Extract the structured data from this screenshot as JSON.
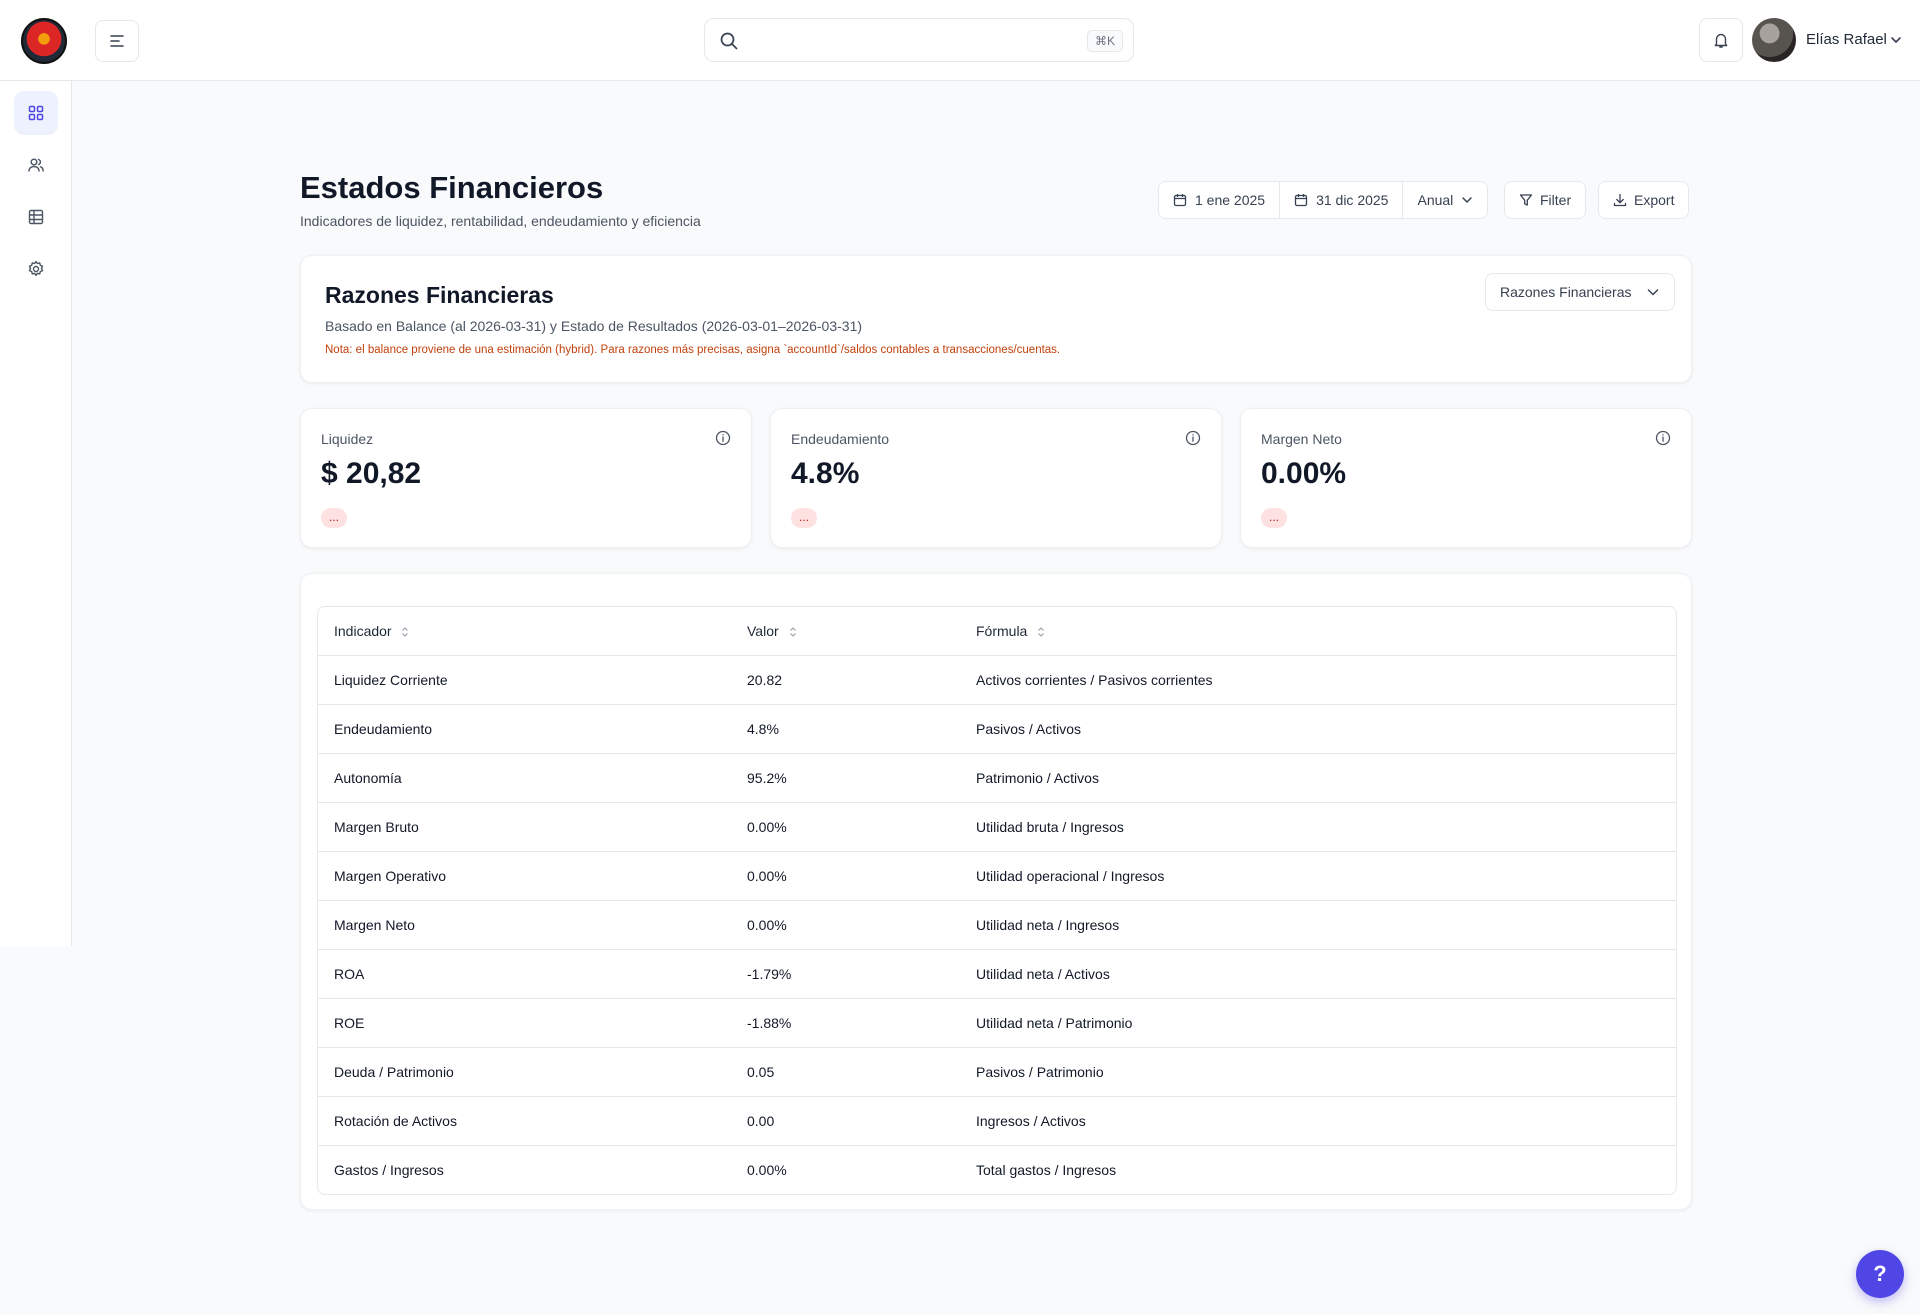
{
  "topbar": {
    "search_placeholder": "",
    "search_shortcut": "⌘K",
    "user_name": "Elías Rafael"
  },
  "sidebar": {
    "items": [
      {
        "icon": "grid-icon",
        "active": true
      },
      {
        "icon": "users-icon",
        "active": false
      },
      {
        "icon": "table-icon",
        "active": false
      },
      {
        "icon": "gear-icon",
        "active": false
      }
    ]
  },
  "header": {
    "title": "Estados Financieros",
    "subtitle": "Indicadores de liquidez, rentabilidad, endeudamiento y eficiencia",
    "date_from": "1 ene 2025",
    "date_to": "31 dic 2025",
    "period": "Anual",
    "filter_label": "Filter",
    "export_label": "Export"
  },
  "ratios": {
    "title": "Razones Financieras",
    "subtitle": "Basado en Balance (al 2026-03-31) y Estado de Resultados (2026-03-01–2026-03-31)",
    "note": "Nota: el balance proviene de una estimación (hybrid). Para razones más precisas, asigna `accountId`/saldos contables a transacciones/cuentas.",
    "report_select": "Razones Financieras"
  },
  "kpis": [
    {
      "label": "Liquidez",
      "value": "$ 20,82",
      "badge": "..."
    },
    {
      "label": "Endeudamiento",
      "value": "4.8%",
      "badge": "..."
    },
    {
      "label": "Margen Neto",
      "value": "0.00%",
      "badge": "..."
    }
  ],
  "table": {
    "headers": [
      "Indicador",
      "Valor",
      "Fórmula"
    ],
    "rows": [
      [
        "Liquidez Corriente",
        "20.82",
        "Activos corrientes / Pasivos corrientes"
      ],
      [
        "Endeudamiento",
        "4.8%",
        "Pasivos / Activos"
      ],
      [
        "Autonomía",
        "95.2%",
        "Patrimonio / Activos"
      ],
      [
        "Margen Bruto",
        "0.00%",
        "Utilidad bruta / Ingresos"
      ],
      [
        "Margen Operativo",
        "0.00%",
        "Utilidad operacional / Ingresos"
      ],
      [
        "Margen Neto",
        "0.00%",
        "Utilidad neta / Ingresos"
      ],
      [
        "ROA",
        "-1.79%",
        "Utilidad neta / Activos"
      ],
      [
        "ROE",
        "-1.88%",
        "Utilidad neta / Patrimonio"
      ],
      [
        "Deuda / Patrimonio",
        "0.05",
        "Pasivos / Patrimonio"
      ],
      [
        "Rotación de Activos",
        "0.00",
        "Ingresos / Activos"
      ],
      [
        "Gastos / Ingresos",
        "0.00%",
        "Total gastos / Ingresos"
      ]
    ]
  },
  "help_label": "?",
  "colors": {
    "accent": "#4f46e5",
    "note": "#c2410c",
    "badge_bg": "#fee2e2"
  }
}
